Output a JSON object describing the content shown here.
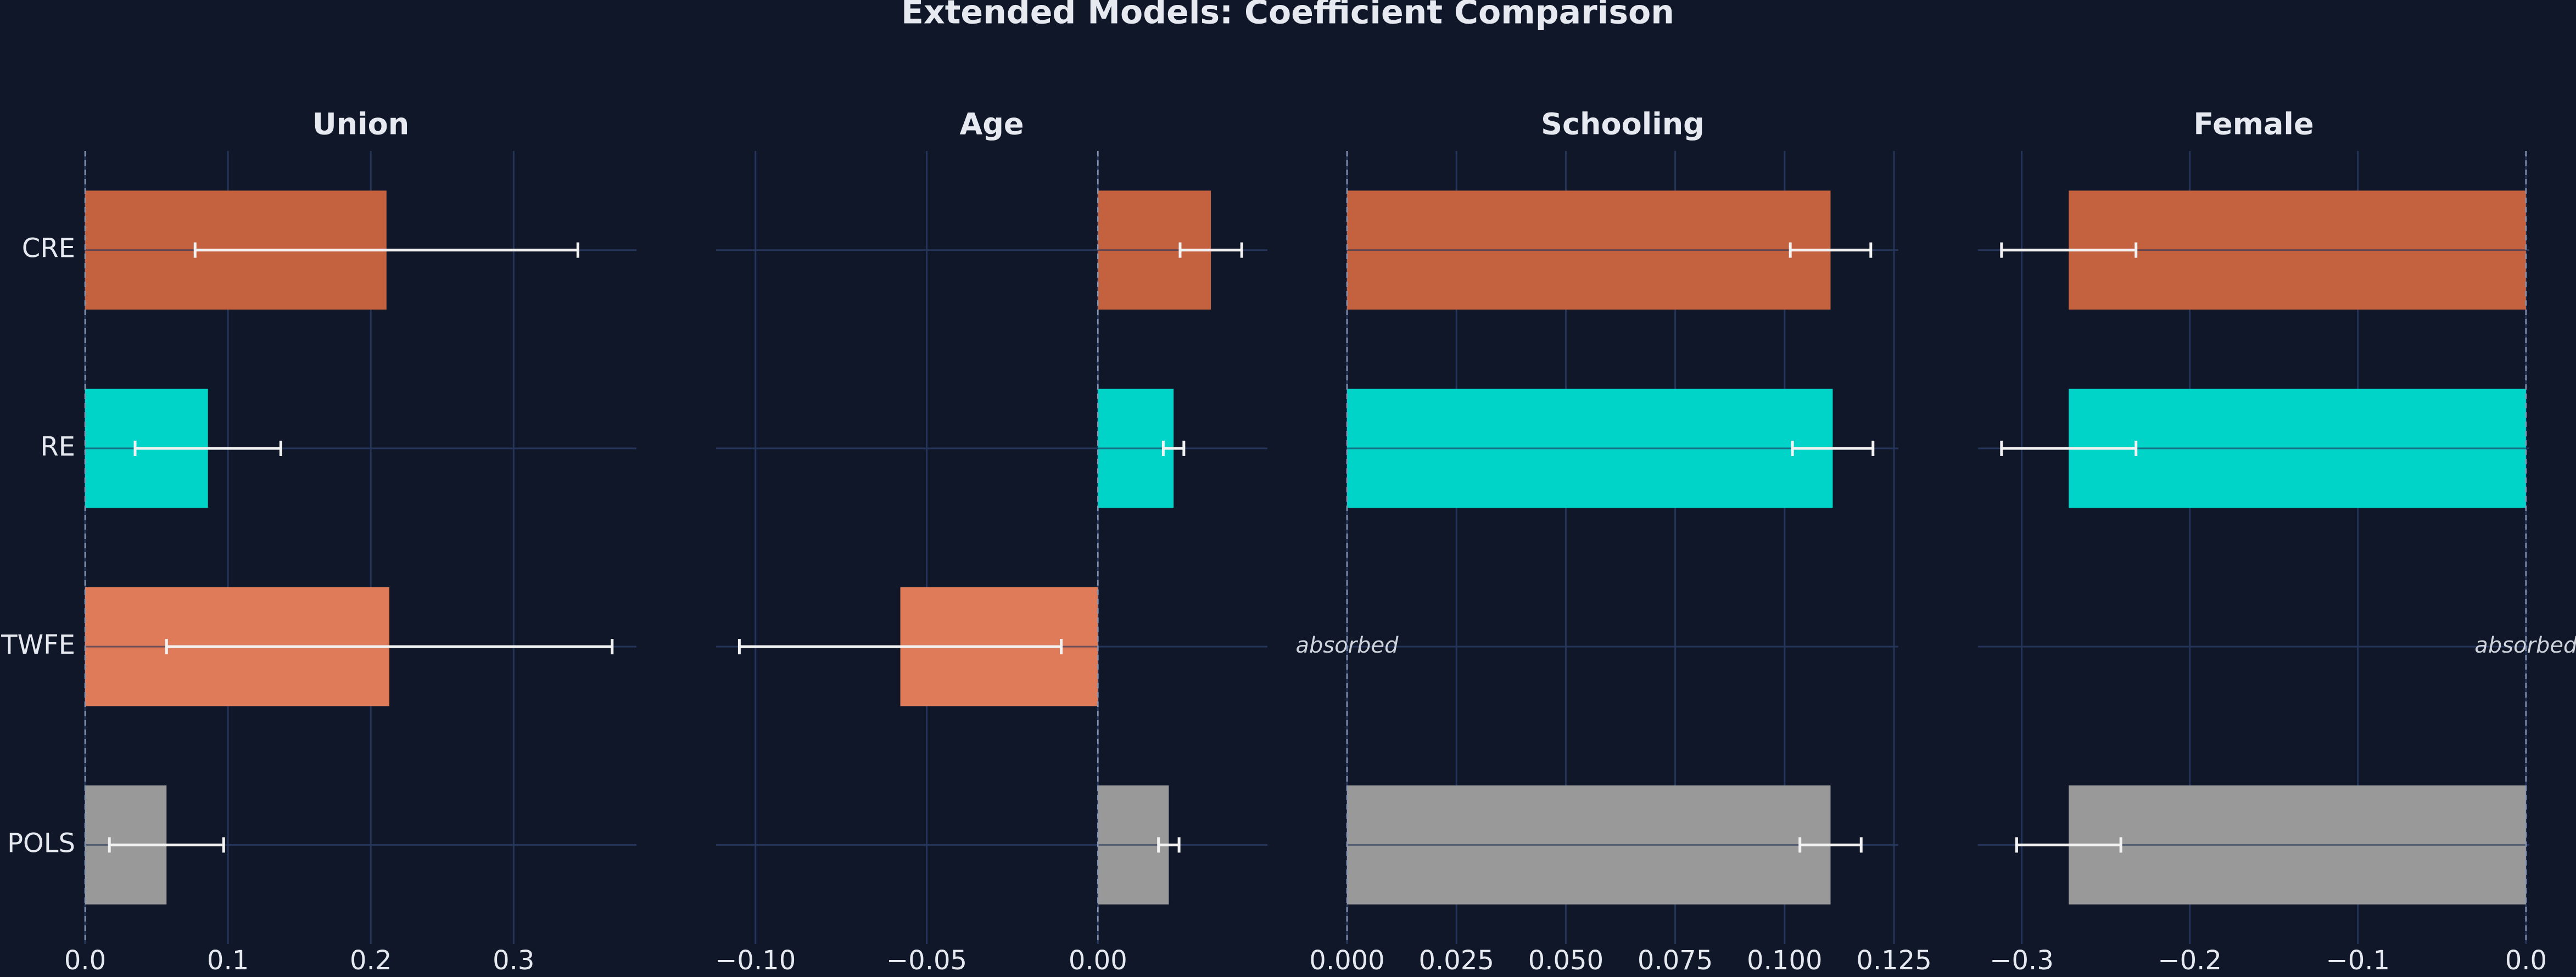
{
  "title": "Extended Models: Coefficient Comparison",
  "categories": [
    "CRE",
    "RE",
    "TWFE",
    "POLS"
  ],
  "colors": [
    "#c4623f",
    "#00d4c8",
    "#e07b5a",
    "#999999"
  ],
  "chart_data": [
    {
      "type": "bar",
      "orientation": "horizontal",
      "title": "Union",
      "values": [
        0.211,
        0.086,
        0.213,
        0.057
      ],
      "errors": [
        0.134,
        0.051,
        0.156,
        0.04
      ],
      "xlim": [
        0,
        0.386
      ],
      "xticks": [
        {
          "value": 0,
          "label": "0.0"
        },
        0.1,
        0.2,
        0.3
      ],
      "grid": true
    },
    {
      "type": "bar",
      "orientation": "horizontal",
      "title": "Age",
      "values": [
        0.033,
        0.0221,
        -0.0577,
        0.0207
      ],
      "errors": [
        0.009,
        0.003,
        0.047,
        0.003
      ],
      "xlim": [
        -0.1115,
        0.0495
      ],
      "xticks": [
        {
          "value": -0.1,
          "label": "−0.10"
        },
        {
          "value": -0.05,
          "label": "−0.05"
        },
        {
          "value": 0,
          "label": "0.00"
        }
      ],
      "grid": true
    },
    {
      "type": "bar",
      "orientation": "horizontal",
      "title": "Schooling",
      "values": [
        0.1105,
        0.111,
        null,
        0.1105
      ],
      "errors": [
        0.0092,
        0.0092,
        null,
        0.007
      ],
      "missing_label": "absorbed",
      "xlim": [
        0,
        0.126
      ],
      "xticks": [
        {
          "value": 0,
          "label": "0.000"
        },
        0.025,
        {
          "value": 0.05,
          "label": "0.050"
        },
        0.075,
        {
          "value": 0.1,
          "label": "0.100"
        },
        0.125
      ],
      "grid": true
    },
    {
      "type": "bar",
      "orientation": "horizontal",
      "title": "Female",
      "values": [
        -0.272,
        -0.272,
        null,
        -0.272
      ],
      "errors": [
        0.04,
        0.04,
        null,
        0.031
      ],
      "missing_label": "absorbed",
      "xlim": [
        -0.326,
        0.002
      ],
      "xticks": [
        {
          "value": -0.3,
          "label": "−0.3"
        },
        {
          "value": -0.2,
          "label": "−0.2"
        },
        {
          "value": -0.1,
          "label": "−0.1"
        },
        {
          "value": 0,
          "label": "0.0"
        }
      ],
      "grid": true
    }
  ]
}
